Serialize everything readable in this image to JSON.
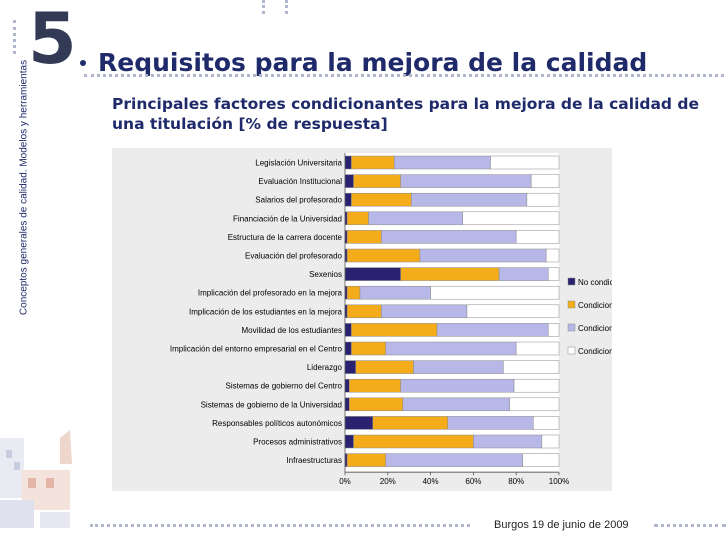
{
  "slide": {
    "section_number": "5",
    "title": "Requisitos para la mejora de la calidad",
    "side_label": "Conceptos generales de calidad. Modelos y herramientas",
    "subtitle": "Principales factores condicionantes para la mejora de la calidad de una titulación [% de respuesta]",
    "footer": "Burgos 19 de junio de 2009"
  },
  "colors": {
    "no_condiciona_nada": "#2a2270",
    "condiciona_poco": "#f4ac1a",
    "condiciona_bastante": "#b7b7e8",
    "condiciona_totalmente": "#ffffff",
    "text": "#1f2a6b"
  },
  "chart_data": {
    "type": "bar",
    "orientation": "horizontal",
    "stacked": true,
    "categories": [
      "Legislación Universitaria",
      "Evaluación Institucional",
      "Salarios del profesorado",
      "Financiación de la Universidad",
      "Estructura de la carrera docente",
      "Evaluación del profesorado",
      "Sexenios",
      "Implicación del profesorado en la mejora",
      "Implicación de los estudiantes en la mejora",
      "Movilidad de los estudiantes",
      "Implicación del entorno empresarial en el Centro",
      "Liderazgo",
      "Sistemas de gobierno del Centro",
      "Sistemas de gobierno de la Universidad",
      "Responsables políticos autonómicos",
      "Procesos administrativos",
      "Infraestructuras"
    ],
    "series": [
      {
        "name": "No condiciona nada",
        "values": [
          3,
          4,
          3,
          1,
          1,
          1,
          26,
          1,
          1,
          3,
          3,
          5,
          2,
          2,
          13,
          4,
          1
        ]
      },
      {
        "name": "Condiciona poco",
        "values": [
          20,
          22,
          28,
          10,
          16,
          34,
          46,
          6,
          16,
          40,
          16,
          27,
          24,
          25,
          35,
          56,
          18
        ]
      },
      {
        "name": "Condiciona bastante",
        "values": [
          45,
          61,
          54,
          44,
          63,
          59,
          23,
          33,
          40,
          52,
          61,
          42,
          53,
          50,
          40,
          32,
          64
        ]
      },
      {
        "name": "Condiciona totalmente",
        "values": [
          32,
          13,
          15,
          45,
          20,
          6,
          5,
          60,
          43,
          5,
          20,
          26,
          21,
          23,
          12,
          8,
          17
        ]
      }
    ],
    "xlim": [
      0,
      100
    ],
    "xtick_labels": [
      "0%",
      "20%",
      "40%",
      "60%",
      "80%",
      "100%"
    ],
    "legend_position": "right",
    "grid": false
  }
}
